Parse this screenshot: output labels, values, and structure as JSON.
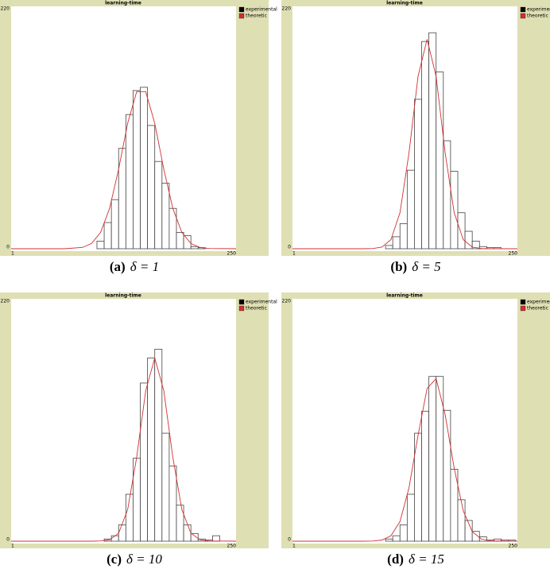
{
  "chart_data": [
    {
      "type": "histogram",
      "title": "learning-time",
      "caption": {
        "label": "(a)",
        "text": "δ = 1"
      },
      "bins": [
        96,
        104,
        112,
        120,
        128,
        136,
        144,
        152,
        160,
        168,
        176,
        184,
        192,
        200,
        208,
        216
      ],
      "series": [
        {
          "name": "experimental",
          "color": "#000000",
          "values": [
            7,
            24,
            45,
            92,
            123,
            145,
            148,
            113,
            80,
            60,
            37,
            15,
            12,
            2,
            1
          ]
        },
        {
          "name": "theoretic",
          "color": "#d03030",
          "x": [
            1,
            60,
            80,
            90,
            100,
            110,
            120,
            130,
            140,
            150,
            160,
            170,
            180,
            190,
            200,
            210,
            220,
            250
          ],
          "values": [
            0,
            0,
            1.2,
            4.8,
            14.9,
            37,
            73,
            115,
            144,
            144,
            115,
            73,
            37,
            14.9,
            4.8,
            1.2,
            0.2,
            0
          ]
        }
      ],
      "xlim": [
        1,
        250
      ],
      "ylim": [
        0,
        220
      ],
      "xticks": [
        1,
        250
      ],
      "yticks": [
        0,
        220
      ]
    },
    {
      "type": "histogram",
      "title": "learning-time",
      "caption": {
        "label": "(b)",
        "text": "δ = 5"
      },
      "bins": [
        104,
        112,
        120,
        128,
        136,
        144,
        152,
        160,
        168,
        176,
        184,
        192,
        200,
        208,
        216,
        224,
        232
      ],
      "series": [
        {
          "name": "experimental",
          "color": "#000000",
          "values": [
            3,
            11,
            23,
            72,
            137,
            190,
            198,
            162,
            99,
            71,
            33,
            16,
            7,
            2,
            1,
            1
          ]
        },
        {
          "name": "theoretic",
          "color": "#d03030",
          "x": [
            1,
            60,
            80,
            90,
            100,
            110,
            120,
            130,
            140,
            150,
            160,
            170,
            180,
            190,
            200,
            210,
            220,
            250
          ],
          "values": [
            0,
            0,
            0,
            0.2,
            1.5,
            8.4,
            33,
            88,
            158,
            192,
            158,
            88,
            33,
            8.4,
            1.5,
            0.2,
            0,
            0
          ]
        }
      ],
      "xlim": [
        1,
        250
      ],
      "ylim": [
        0,
        220
      ],
      "xticks": [
        1,
        250
      ],
      "yticks": [
        0,
        220
      ]
    },
    {
      "type": "histogram",
      "title": "learning-time",
      "caption": {
        "label": "(c)",
        "text": "δ = 10"
      },
      "bins": [
        104,
        112,
        120,
        128,
        136,
        144,
        152,
        160,
        168,
        176,
        184,
        192,
        200,
        208,
        216,
        224,
        232
      ],
      "series": [
        {
          "name": "experimental",
          "color": "#000000",
          "values": [
            2,
            5,
            15,
            43,
            76,
            145,
            168,
            176,
            99,
            69,
            33,
            15,
            7,
            2,
            1,
            5
          ]
        },
        {
          "name": "theoretic",
          "color": "#d03030",
          "x": [
            1,
            60,
            80,
            90,
            100,
            110,
            120,
            130,
            140,
            150,
            160,
            170,
            180,
            190,
            200,
            210,
            220,
            250
          ],
          "values": [
            0,
            0,
            0,
            0,
            0.2,
            1.3,
            7.3,
            29,
            77,
            138,
            168,
            138,
            77,
            29,
            7.3,
            1.3,
            0.2,
            0
          ]
        }
      ],
      "xlim": [
        1,
        250
      ],
      "ylim": [
        0,
        220
      ],
      "xticks": [
        1,
        250
      ],
      "yticks": [
        0,
        220
      ]
    },
    {
      "type": "histogram",
      "title": "learning-time",
      "caption": {
        "label": "(d)",
        "text": "δ = 15"
      },
      "bins": [
        104,
        112,
        120,
        128,
        136,
        144,
        152,
        160,
        168,
        176,
        184,
        192,
        200,
        208,
        216,
        224,
        232,
        240,
        248
      ],
      "series": [
        {
          "name": "experimental",
          "color": "#000000",
          "values": [
            2,
            5,
            15,
            43,
            99,
            119,
            151,
            151,
            120,
            66,
            38,
            19,
            9,
            4,
            1,
            2,
            1,
            1
          ]
        },
        {
          "name": "theoretic",
          "color": "#d03030",
          "x": [
            1,
            60,
            80,
            90,
            100,
            110,
            120,
            130,
            140,
            150,
            160,
            170,
            180,
            190,
            200,
            210,
            220,
            250
          ],
          "values": [
            0,
            0,
            0,
            0.1,
            1,
            5,
            18,
            49,
            97,
            140,
            149,
            116,
            67,
            28,
            8.8,
            2,
            0.3,
            0
          ]
        }
      ],
      "xlim": [
        1,
        250
      ],
      "ylim": [
        0,
        220
      ],
      "xticks": [
        1,
        250
      ],
      "yticks": [
        0,
        220
      ]
    }
  ]
}
